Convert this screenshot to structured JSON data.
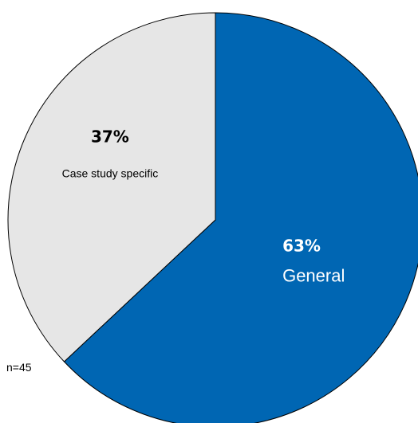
{
  "chart_data": {
    "type": "pie",
    "start_angle_deg": 0,
    "direction": "clockwise",
    "slices": [
      {
        "label": "General",
        "percent_label": "63%",
        "value": 63,
        "color": "#0066b3",
        "text_color": "#ffffff"
      },
      {
        "label": "Case study specific",
        "percent_label": "37%",
        "value": 37,
        "color": "#e6e6e6",
        "text_color": "#000000"
      }
    ],
    "note": "n=45",
    "outline_color": "#000000"
  }
}
